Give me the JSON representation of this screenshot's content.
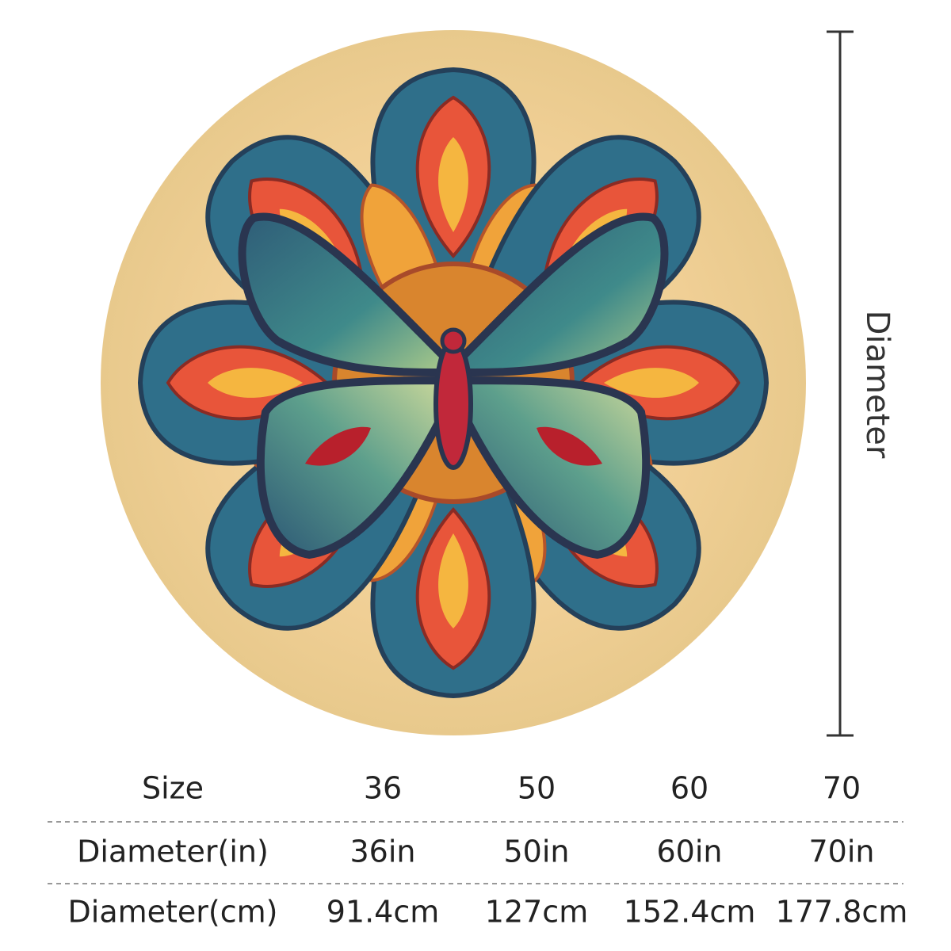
{
  "dimension_label": "Diameter",
  "table": {
    "rows": [
      [
        "Size",
        "36",
        "50",
        "60",
        "70"
      ],
      [
        "Diameter(in)",
        "36in",
        "50in",
        "60in",
        "70in"
      ],
      [
        "Diameter(cm)",
        "91.4cm",
        "127cm",
        "152.4cm",
        "177.8cm"
      ]
    ]
  }
}
